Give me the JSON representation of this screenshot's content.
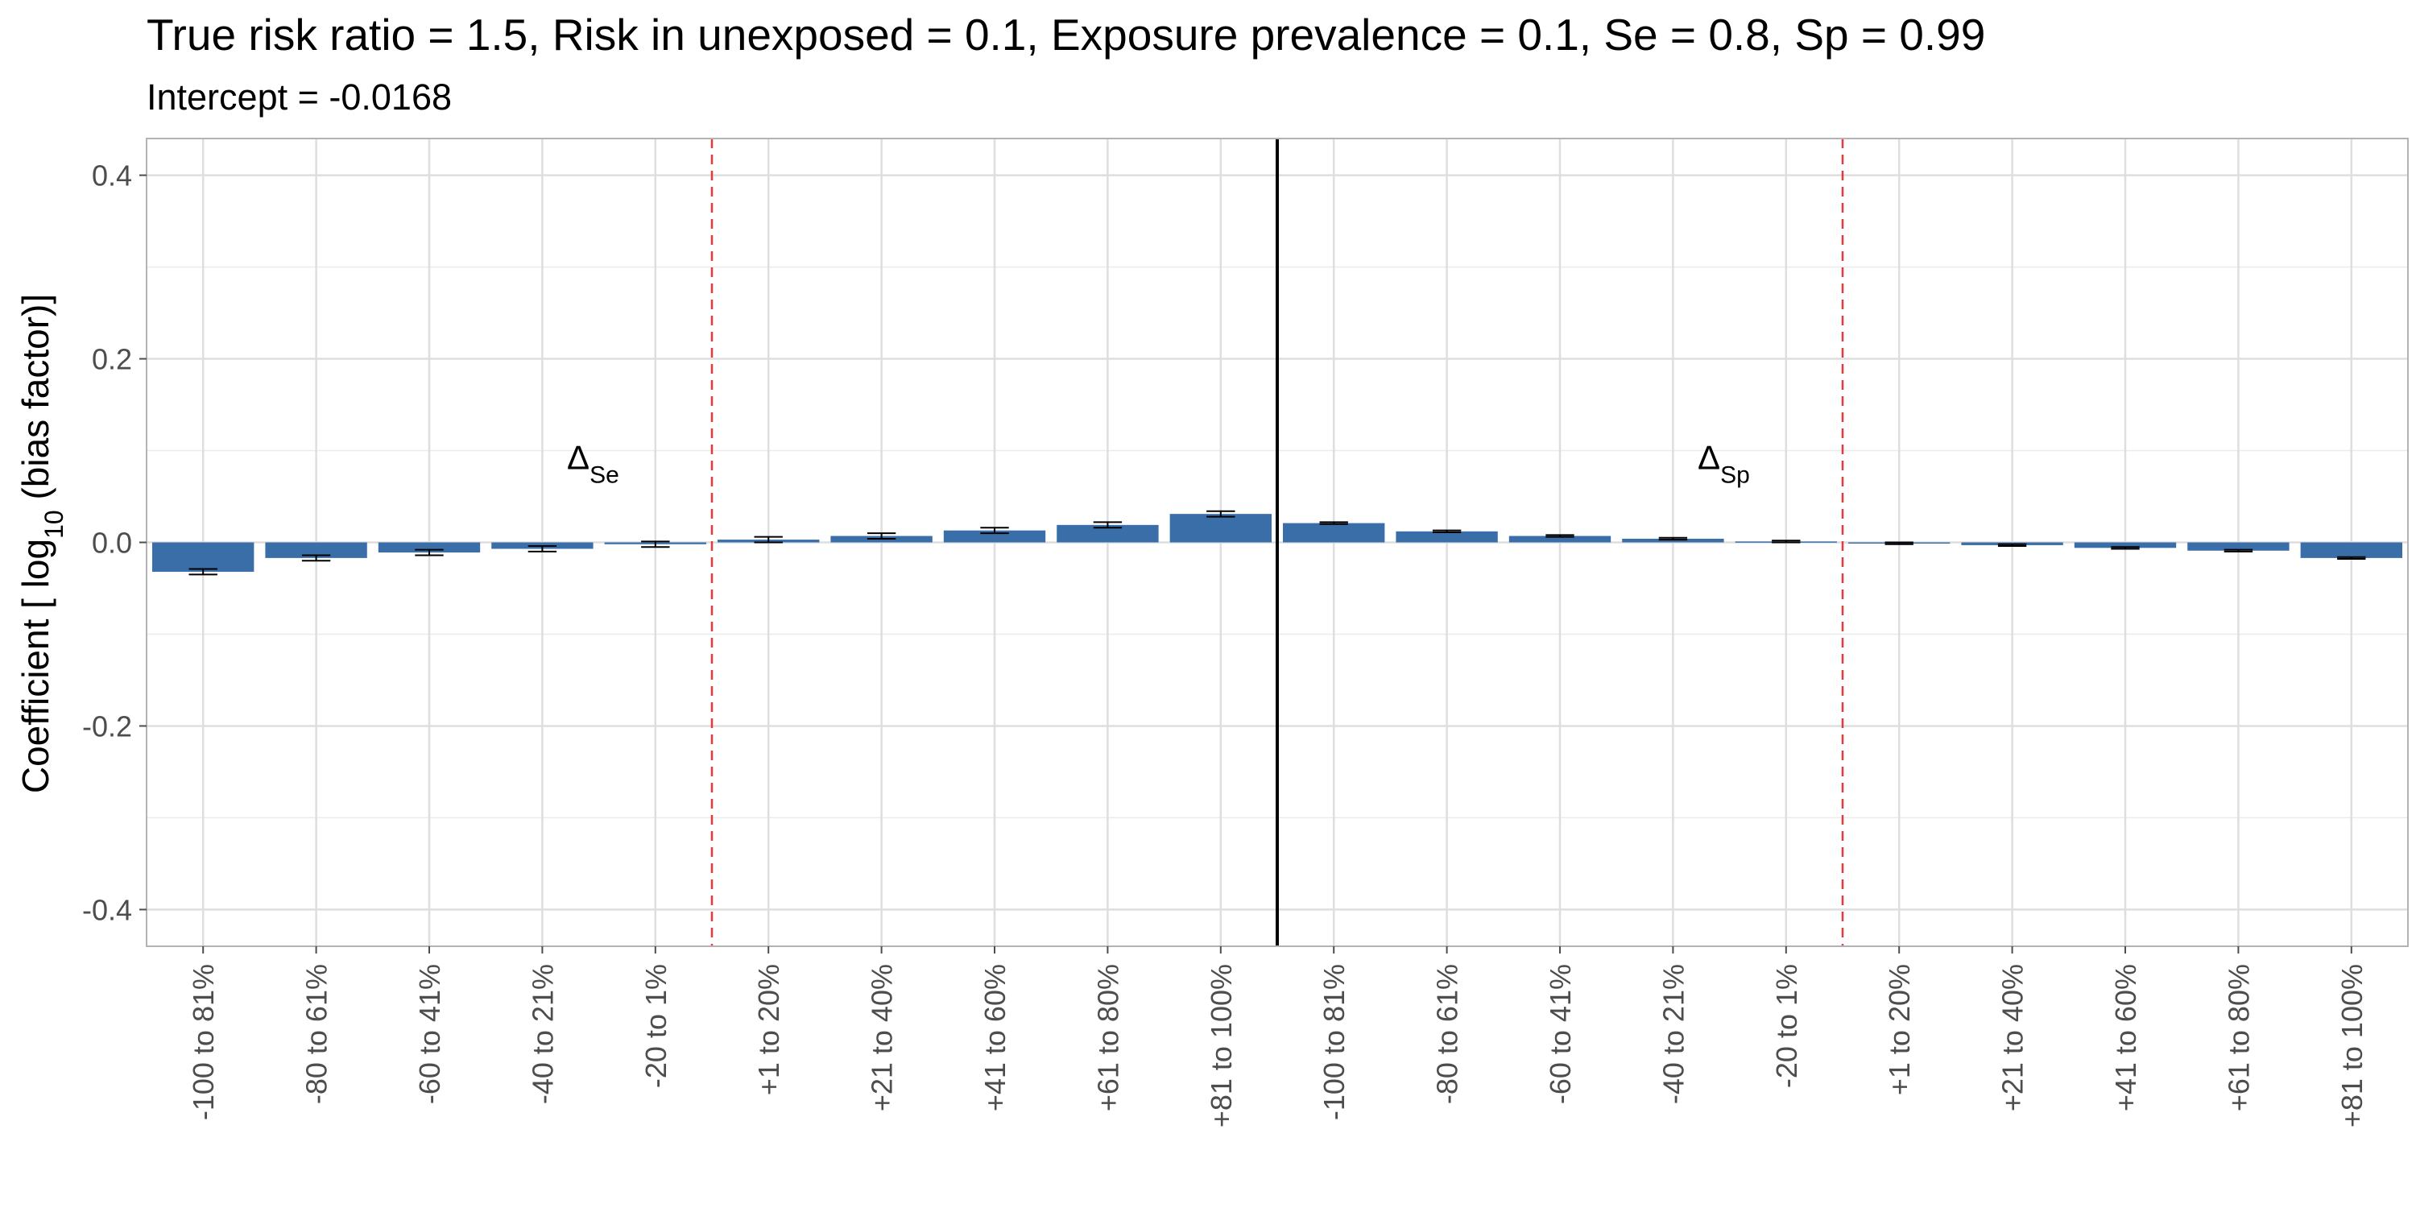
{
  "chart_data": {
    "type": "bar",
    "title": "True risk ratio = 1.5, Risk in unexposed = 0.1, Exposure prevalence = 0.1, Se = 0.8, Sp = 0.99",
    "subtitle": "Intercept = -0.0168",
    "ylabel": {
      "prefix": "Coefficient [ log",
      "subscript": "10",
      "suffix": " (bias factor)]"
    },
    "xlabel": "",
    "ylim": [
      -0.44,
      0.44
    ],
    "yticks": [
      -0.4,
      -0.2,
      0.0,
      0.2,
      0.4
    ],
    "ytick_labels": [
      "-0.4",
      "-0.2",
      "0.0",
      "0.2",
      "0.4"
    ],
    "grid": true,
    "categories": [
      "-100 to 81%",
      "-80 to 61%",
      "-60 to 41%",
      "-40 to 21%",
      "-20 to 1%",
      "+1 to 20%",
      "+21 to 40%",
      "+41 to 60%",
      "+61 to 80%",
      "+81 to 100%",
      "-100 to 81%",
      "-80 to 61%",
      "-60 to 41%",
      "-40 to 21%",
      "-20 to 1%",
      "+1 to 20%",
      "+21 to 40%",
      "+41 to 60%",
      "+61 to 80%",
      "+81 to 100%"
    ],
    "values": [
      -0.032,
      -0.017,
      -0.011,
      -0.007,
      -0.002,
      0.003,
      0.007,
      0.013,
      0.019,
      0.031,
      0.021,
      0.012,
      0.007,
      0.004,
      0.001,
      -0.001,
      -0.003,
      -0.006,
      -0.009,
      -0.017
    ],
    "error": [
      0.003,
      0.003,
      0.003,
      0.003,
      0.003,
      0.003,
      0.003,
      0.003,
      0.003,
      0.003,
      0.001,
      0.001,
      0.001,
      0.001,
      0.001,
      0.001,
      0.001,
      0.001,
      0.001,
      0.001
    ],
    "bar_color": "#3A6EA8",
    "groups": [
      {
        "label_main": "Δ",
        "label_sub": "Se",
        "x_position_between": [
          4,
          5
        ]
      },
      {
        "label_main": "Δ",
        "label_sub": "Sp",
        "x_position_between": [
          14,
          15
        ]
      }
    ],
    "dashed_line_color": "#E8383D",
    "divider_color": "#000000"
  }
}
